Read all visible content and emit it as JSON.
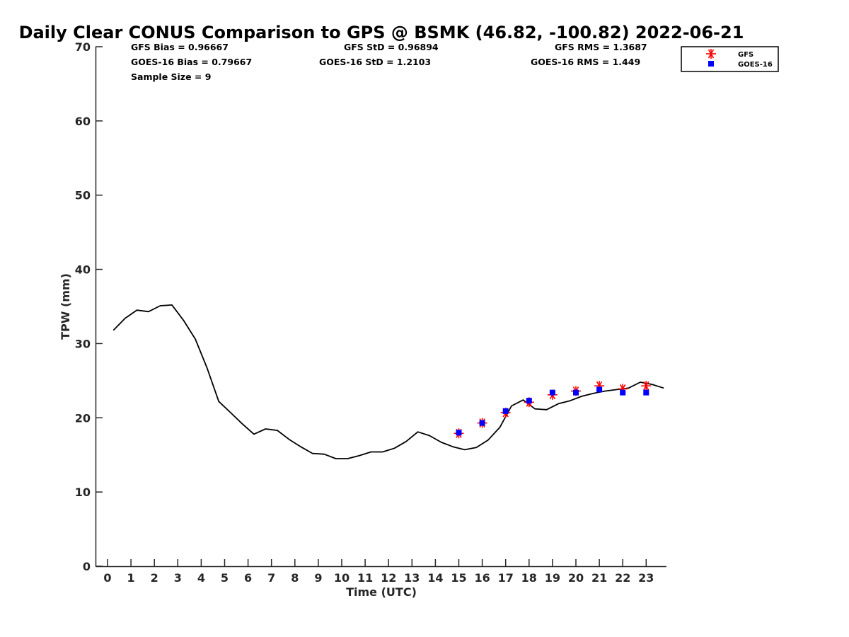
{
  "chart_data": {
    "type": "line",
    "title": "Daily Clear CONUS Comparison to GPS @ BSMK (46.82, -100.82) 2022-06-21",
    "xlabel": "Time (UTC)",
    "ylabel": "TPW (mm)",
    "xlim": [
      -0.5,
      23.75
    ],
    "ylim": [
      0,
      70
    ],
    "xticks": [
      0,
      1,
      2,
      3,
      4,
      5,
      6,
      7,
      8,
      9,
      10,
      11,
      12,
      13,
      14,
      15,
      16,
      17,
      18,
      19,
      20,
      21,
      22,
      23
    ],
    "yticks": [
      0,
      10,
      20,
      30,
      40,
      50,
      60,
      70
    ],
    "grid": false,
    "legend_position": "top-right",
    "stats": {
      "gfs_bias": "GFS Bias = 0.96667",
      "gfs_std": "GFS StD = 0.96894",
      "gfs_rms": "GFS RMS = 1.3687",
      "goes_bias": "GOES-16 Bias = 0.79667",
      "goes_std": "GOES-16 StD = 1.2103",
      "goes_rms": "GOES-16 RMS = 1.449",
      "sample_size": "Sample Size = 9"
    },
    "series": [
      {
        "type": "line",
        "color": "#000000",
        "x": [
          0.25,
          0.75,
          1.25,
          1.75,
          2.25,
          2.75,
          3.25,
          3.75,
          4.25,
          4.75,
          5.25,
          5.75,
          6.25,
          6.75,
          7.25,
          7.75,
          8.25,
          8.75,
          9.25,
          9.75,
          10.25,
          10.75,
          11.25,
          11.75,
          12.25,
          12.75,
          13.25,
          13.75,
          14.25,
          14.75,
          15.25,
          15.75,
          16.25,
          16.75,
          17.25,
          17.75,
          18.25,
          18.75,
          19.25,
          19.75,
          20.25,
          20.75,
          21.25,
          21.75,
          22.25,
          22.75,
          23.25,
          23.75
        ],
        "y": [
          31.8,
          33.4,
          34.5,
          34.3,
          35.1,
          35.2,
          33.1,
          30.6,
          26.7,
          22.2,
          20.7,
          19.2,
          17.8,
          18.5,
          18.3,
          17.1,
          16.1,
          15.2,
          15.1,
          14.5,
          14.5,
          14.9,
          15.4,
          15.4,
          15.9,
          16.8,
          18.1,
          17.6,
          16.7,
          16.1,
          15.7,
          16.0,
          17.0,
          18.7,
          21.6,
          22.4,
          21.2,
          21.1,
          21.9,
          22.3,
          22.9,
          23.3,
          23.6,
          23.8,
          24.0,
          24.8,
          24.5,
          24.0
        ]
      },
      {
        "name": "GFS",
        "type": "scatter",
        "marker": "asterisk",
        "color": "#ff0000",
        "x": [
          15,
          16,
          17,
          18,
          19,
          20,
          21,
          22,
          23
        ],
        "y": [
          17.9,
          19.3,
          20.7,
          22.1,
          23.1,
          23.6,
          24.3,
          23.9,
          24.3
        ]
      },
      {
        "name": "GOES-16",
        "type": "scatter",
        "marker": "square",
        "color": "#0000ff",
        "x": [
          15,
          16,
          17,
          18,
          19,
          20,
          21,
          22,
          23
        ],
        "y": [
          18.0,
          19.3,
          20.9,
          22.3,
          23.4,
          23.4,
          23.8,
          23.4,
          23.4
        ]
      }
    ]
  }
}
